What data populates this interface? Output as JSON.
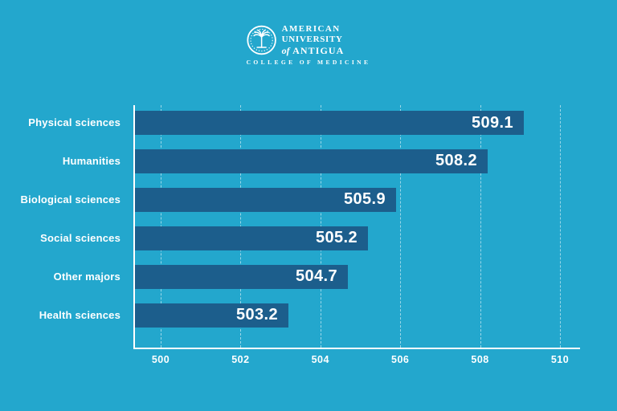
{
  "logo": {
    "line1": "AMERICAN",
    "line2": "UNIVERSITY",
    "line3_of": "of",
    "line3_name": "ANTIGUA",
    "subtitle": "COLLEGE OF MEDICINE",
    "seal_icon": "palm-tree-seal-icon"
  },
  "chart_data": {
    "type": "bar",
    "orientation": "horizontal",
    "title": "",
    "categories": [
      "Physical sciences",
      "Humanities",
      "Biological sciences",
      "Social sciences",
      "Other majors",
      "Health sciences"
    ],
    "values": [
      509.1,
      508.2,
      505.9,
      505.2,
      504.7,
      503.2
    ],
    "value_labels": [
      "509.1",
      "508.2",
      "505.9",
      "505.2",
      "504.7",
      "503.2"
    ],
    "x_ticks": [
      "500",
      "502",
      "504",
      "506",
      "508",
      "510"
    ],
    "x_tick_values": [
      500,
      502,
      504,
      506,
      508,
      510
    ],
    "xlim": [
      499.36,
      510.5
    ],
    "grid": "vertical-dashed",
    "legend": "none",
    "colors": {
      "background": "#23a7cd",
      "bar": "#1c5e8c",
      "text": "#ffffff",
      "gridline": "rgba(255,255,255,0.55)",
      "axis": "#ffffff"
    }
  }
}
